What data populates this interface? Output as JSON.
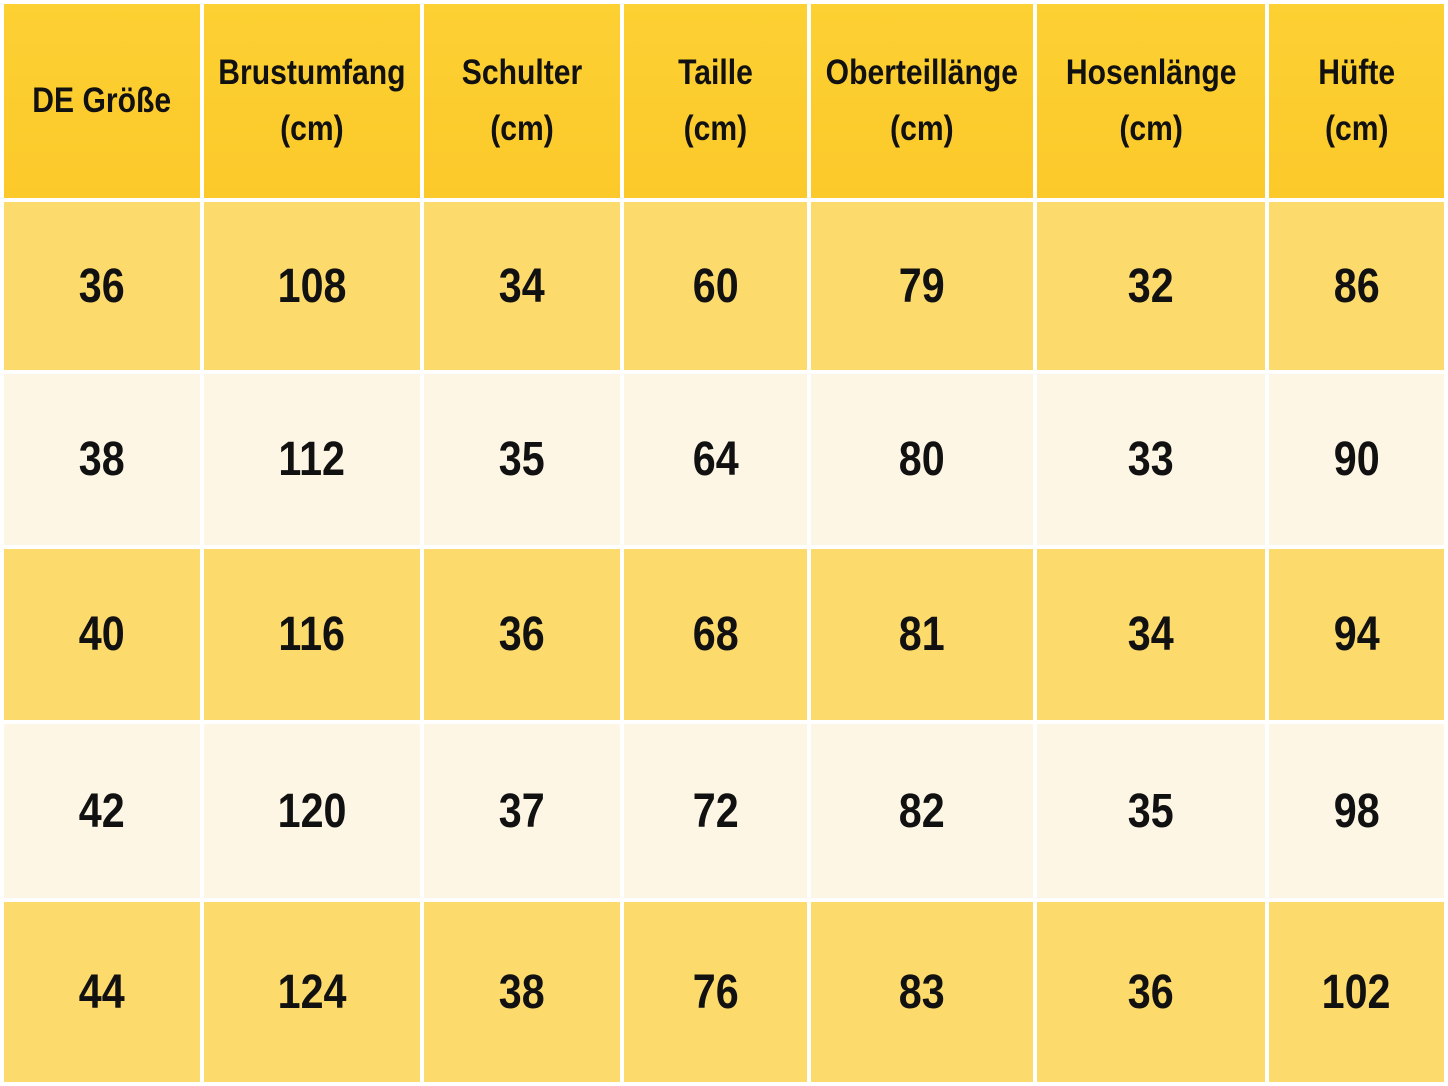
{
  "table": {
    "header": [
      "DE Größe",
      "Brustumfang\n(cm)",
      "Schulter\n(cm)",
      "Taille\n(cm)",
      "Oberteillänge\n(cm)",
      "Hosenlänge\n(cm)",
      "Hüfte\n(cm)"
    ],
    "rows": [
      [
        36,
        108,
        34,
        60,
        79,
        32,
        86
      ],
      [
        38,
        112,
        35,
        64,
        80,
        33,
        90
      ],
      [
        40,
        116,
        36,
        68,
        81,
        34,
        94
      ],
      [
        42,
        120,
        37,
        72,
        82,
        35,
        98
      ],
      [
        44,
        124,
        38,
        76,
        83,
        36,
        102
      ]
    ]
  }
}
